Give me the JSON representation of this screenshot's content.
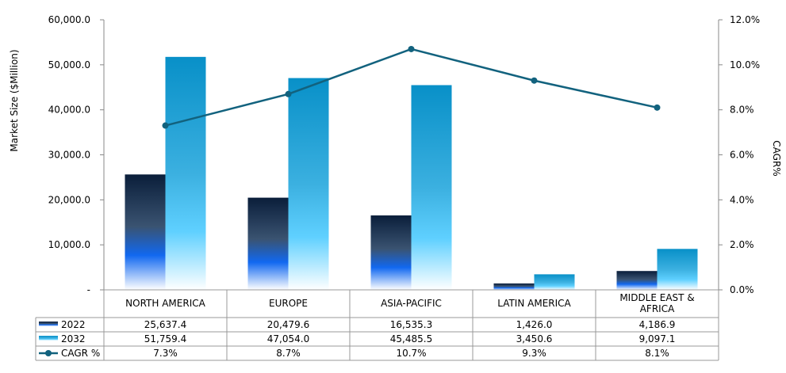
{
  "chart_data": {
    "type": "bar",
    "title": "",
    "ylabel": "Market Size ($Million)",
    "y2label": "CAGR%",
    "ylim": [
      0,
      60000
    ],
    "y2lim": [
      0,
      12
    ],
    "yticks": [
      "-",
      "10,000.0",
      "20,000.0",
      "30,000.0",
      "40,000.0",
      "50,000.0",
      "60,000.0"
    ],
    "y2ticks": [
      "0.0%",
      "2.0%",
      "4.0%",
      "6.0%",
      "8.0%",
      "10.0%",
      "12.0%"
    ],
    "categories": [
      "NORTH AMERICA",
      "EUROPE",
      "ASIA-PACIFIC",
      "LATIN AMERICA",
      "MIDDLE EAST & AFRICA"
    ],
    "series": [
      {
        "name": "2022",
        "type": "bar",
        "values": [
          25637.4,
          20479.6,
          16535.3,
          1426.0,
          4186.9
        ],
        "labels": [
          "25,637.4",
          "20,479.6",
          "16,535.3",
          "1,426.0",
          "4,186.9"
        ]
      },
      {
        "name": "2032",
        "type": "bar",
        "values": [
          51759.4,
          47054.0,
          45485.5,
          3450.6,
          9097.1
        ],
        "labels": [
          "51,759.4",
          "47,054.0",
          "45,485.5",
          "3,450.6",
          "9,097.1"
        ]
      },
      {
        "name": "CAGR %",
        "type": "line",
        "axis": "right",
        "values": [
          7.3,
          8.7,
          10.7,
          9.3,
          8.1
        ],
        "labels": [
          "7.3%",
          "8.7%",
          "10.7%",
          "9.3%",
          "8.1%"
        ]
      }
    ],
    "grid": false,
    "legend": "data-table",
    "colors": {
      "bar2022_dark": "#0a2444",
      "bar2032": "#0b8fc6",
      "line": "#12627e"
    }
  }
}
